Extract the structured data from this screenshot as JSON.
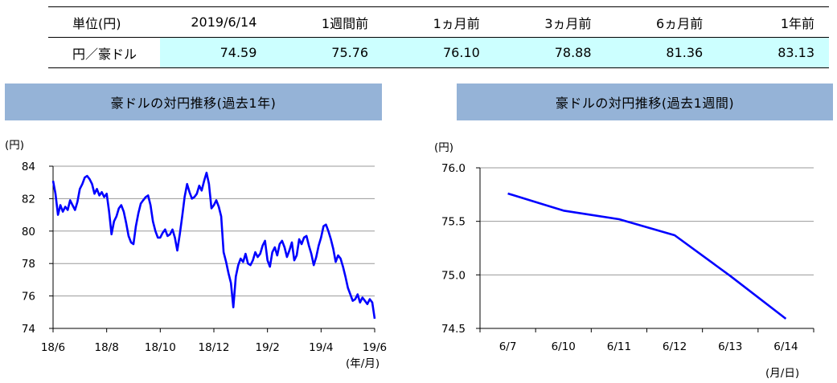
{
  "table": {
    "headers": [
      "単位(円)",
      "2019/6/14",
      "1週間前",
      "1ヵ月前",
      "3ヵ月前",
      "6ヵ月前",
      "1年前"
    ],
    "row_label": "円／豪ドル",
    "values": [
      "74.59",
      "75.76",
      "76.10",
      "78.88",
      "81.36",
      "83.13"
    ]
  },
  "chart_data": [
    {
      "type": "line",
      "title": "豪ドルの対円推移(過去1年)",
      "ylabel": "(円)",
      "xlabel": "(年/月)",
      "ylim": [
        74,
        84
      ],
      "yticks": [
        74,
        76,
        78,
        80,
        82,
        84
      ],
      "xticks": [
        "18/6",
        "18/8",
        "18/10",
        "18/12",
        "19/2",
        "19/4",
        "19/6"
      ],
      "grid": true,
      "color": "#0000ff",
      "series": [
        {
          "values": [
            83.1,
            82.3,
            81.0,
            81.6,
            81.2,
            81.5,
            81.3,
            81.9,
            81.6,
            81.3,
            81.8,
            82.6,
            82.9,
            83.3,
            83.4,
            83.2,
            82.9,
            82.3,
            82.6,
            82.2,
            82.4,
            82.1,
            82.3,
            81.2,
            79.8,
            80.6,
            80.9,
            81.4,
            81.6,
            81.2,
            80.5,
            79.7,
            79.3,
            79.2,
            80.3,
            81.1,
            81.7,
            81.9,
            82.1,
            82.2,
            81.6,
            80.6,
            80.0,
            79.6,
            79.6,
            79.9,
            80.1,
            79.7,
            79.8,
            80.1,
            79.6,
            78.8,
            79.8,
            80.9,
            82.1,
            82.9,
            82.4,
            82.0,
            82.1,
            82.3,
            82.8,
            82.5,
            83.1,
            83.6,
            82.9,
            81.4,
            81.6,
            81.9,
            81.5,
            80.9,
            78.7,
            78.1,
            77.4,
            76.8,
            75.3,
            77.2,
            77.9,
            78.3,
            78.1,
            78.6,
            78.0,
            77.9,
            78.2,
            78.7,
            78.4,
            78.6,
            79.1,
            79.4,
            78.2,
            77.8,
            78.7,
            79.0,
            78.5,
            79.2,
            79.4,
            79.0,
            78.4,
            78.8,
            79.3,
            78.2,
            78.5,
            79.5,
            79.2,
            79.6,
            79.7,
            79.1,
            78.6,
            77.9,
            78.4,
            79.1,
            79.6,
            80.3,
            80.4,
            80.0,
            79.5,
            78.9,
            78.1,
            78.5,
            78.3,
            77.8,
            77.2,
            76.5,
            76.1,
            75.7,
            75.8,
            76.1,
            75.6,
            75.9,
            75.7,
            75.5,
            75.8,
            75.6,
            74.6
          ]
        }
      ]
    },
    {
      "type": "line",
      "title": "豪ドルの対円推移(過去1週間)",
      "ylabel": "(円)",
      "xlabel": "(月/日)",
      "ylim": [
        74.5,
        76.0
      ],
      "yticks": [
        "74.5",
        "75.0",
        "75.5",
        "76.0"
      ],
      "categories": [
        "6/7",
        "6/10",
        "6/11",
        "6/12",
        "6/13",
        "6/14"
      ],
      "grid": true,
      "color": "#0000ff",
      "series": [
        {
          "values": [
            75.76,
            75.6,
            75.52,
            75.37,
            74.99,
            74.59
          ]
        }
      ]
    }
  ]
}
